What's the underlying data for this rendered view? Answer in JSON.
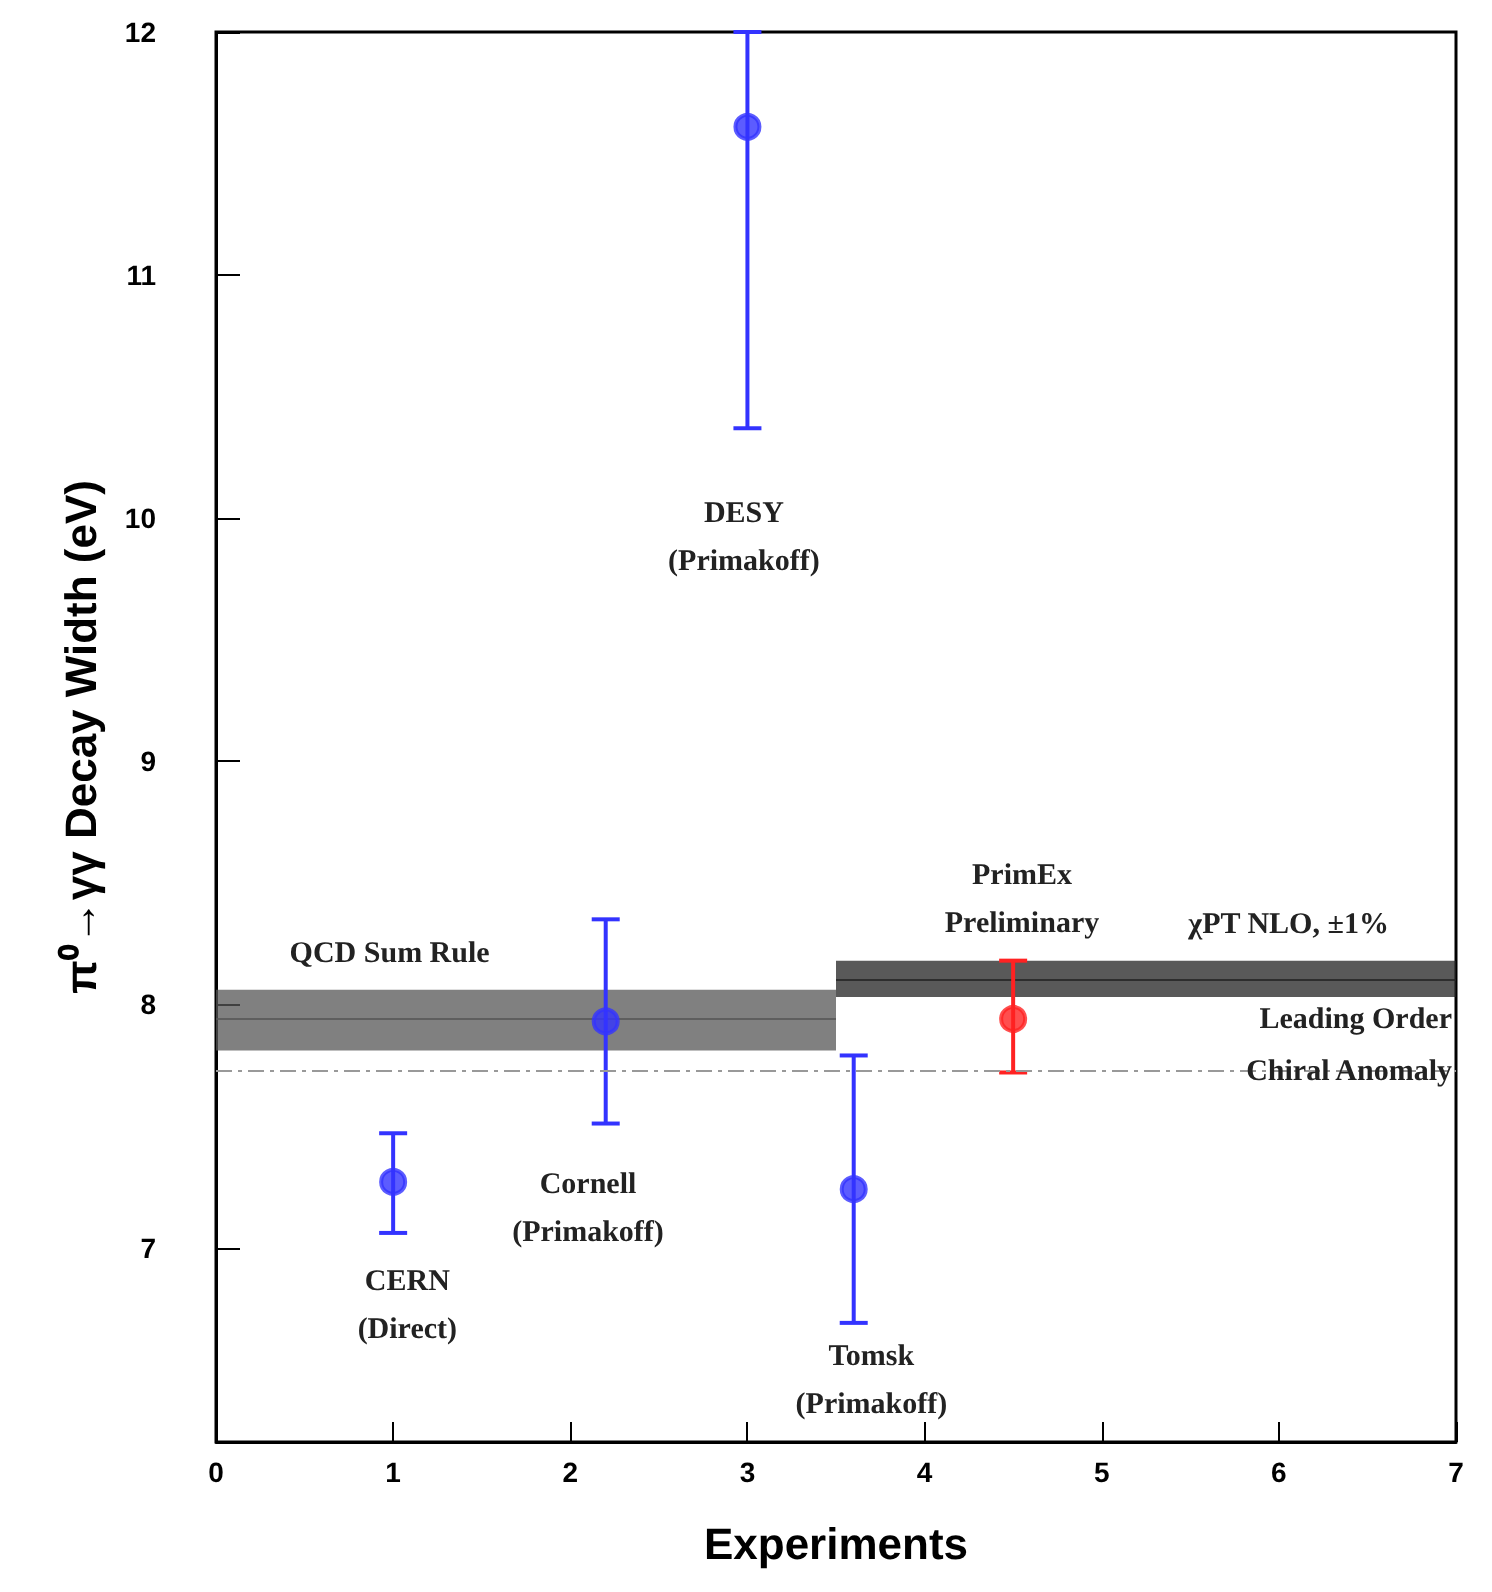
{
  "chart_data": {
    "type": "scatter",
    "xlabel": "Experiments",
    "ylabel": "π⁰→γγ Decay Width (eV)",
    "xlim": [
      0,
      7
    ],
    "xticks": [
      0,
      1,
      2,
      3,
      4,
      5,
      6,
      7
    ],
    "ylim": [
      6.2,
      12
    ],
    "yticks": [
      7,
      8,
      9,
      10,
      11,
      12
    ],
    "marker": "circle",
    "grid": false,
    "legend": false,
    "series": [
      {
        "color": "#3333ff",
        "x": [
          1,
          2.2,
          3,
          3.6
        ],
        "values": [
          7.27,
          7.93,
          11.61,
          7.24
        ],
        "errors": [
          [
            7.06,
            7.47
          ],
          [
            7.51,
            8.35
          ],
          [
            10.37,
            12
          ],
          [
            6.69,
            7.79
          ]
        ]
      },
      {
        "color": "#ff2222",
        "x": [
          4.5
        ],
        "values": [
          7.94
        ],
        "errors": [
          [
            7.72,
            8.18
          ]
        ]
      },
      {
        "type": "line",
        "name": "QCD Sum Rule",
        "marker": "none",
        "color": "#555555",
        "x": [
          0,
          3.5
        ],
        "values": [
          7.94,
          7.94
        ],
        "lower": [
          7.81,
          7.81
        ],
        "upper": [
          8.06,
          8.06
        ]
      },
      {
        "type": "line",
        "name": "χPT NLO, ±1%",
        "marker": "none",
        "color": "#222222",
        "x": [
          3.5,
          7
        ],
        "values": [
          8.1,
          8.1
        ],
        "lower": [
          8.03,
          8.03
        ],
        "upper": [
          8.18,
          8.18
        ]
      }
    ],
    "ref_lines": [
      {
        "axis": "y",
        "value": 7.73,
        "label": "Leading Order\nChiral Anomaly",
        "color": "#999999",
        "line_style": "dashed"
      }
    ],
    "annotations": [
      "CERN\n(Direct)",
      "Cornell\n(Primakoff)",
      "DESY\n(Primakoff)",
      "Tomsk\n(Primakoff)",
      "PrimEx\nPreliminary"
    ]
  }
}
